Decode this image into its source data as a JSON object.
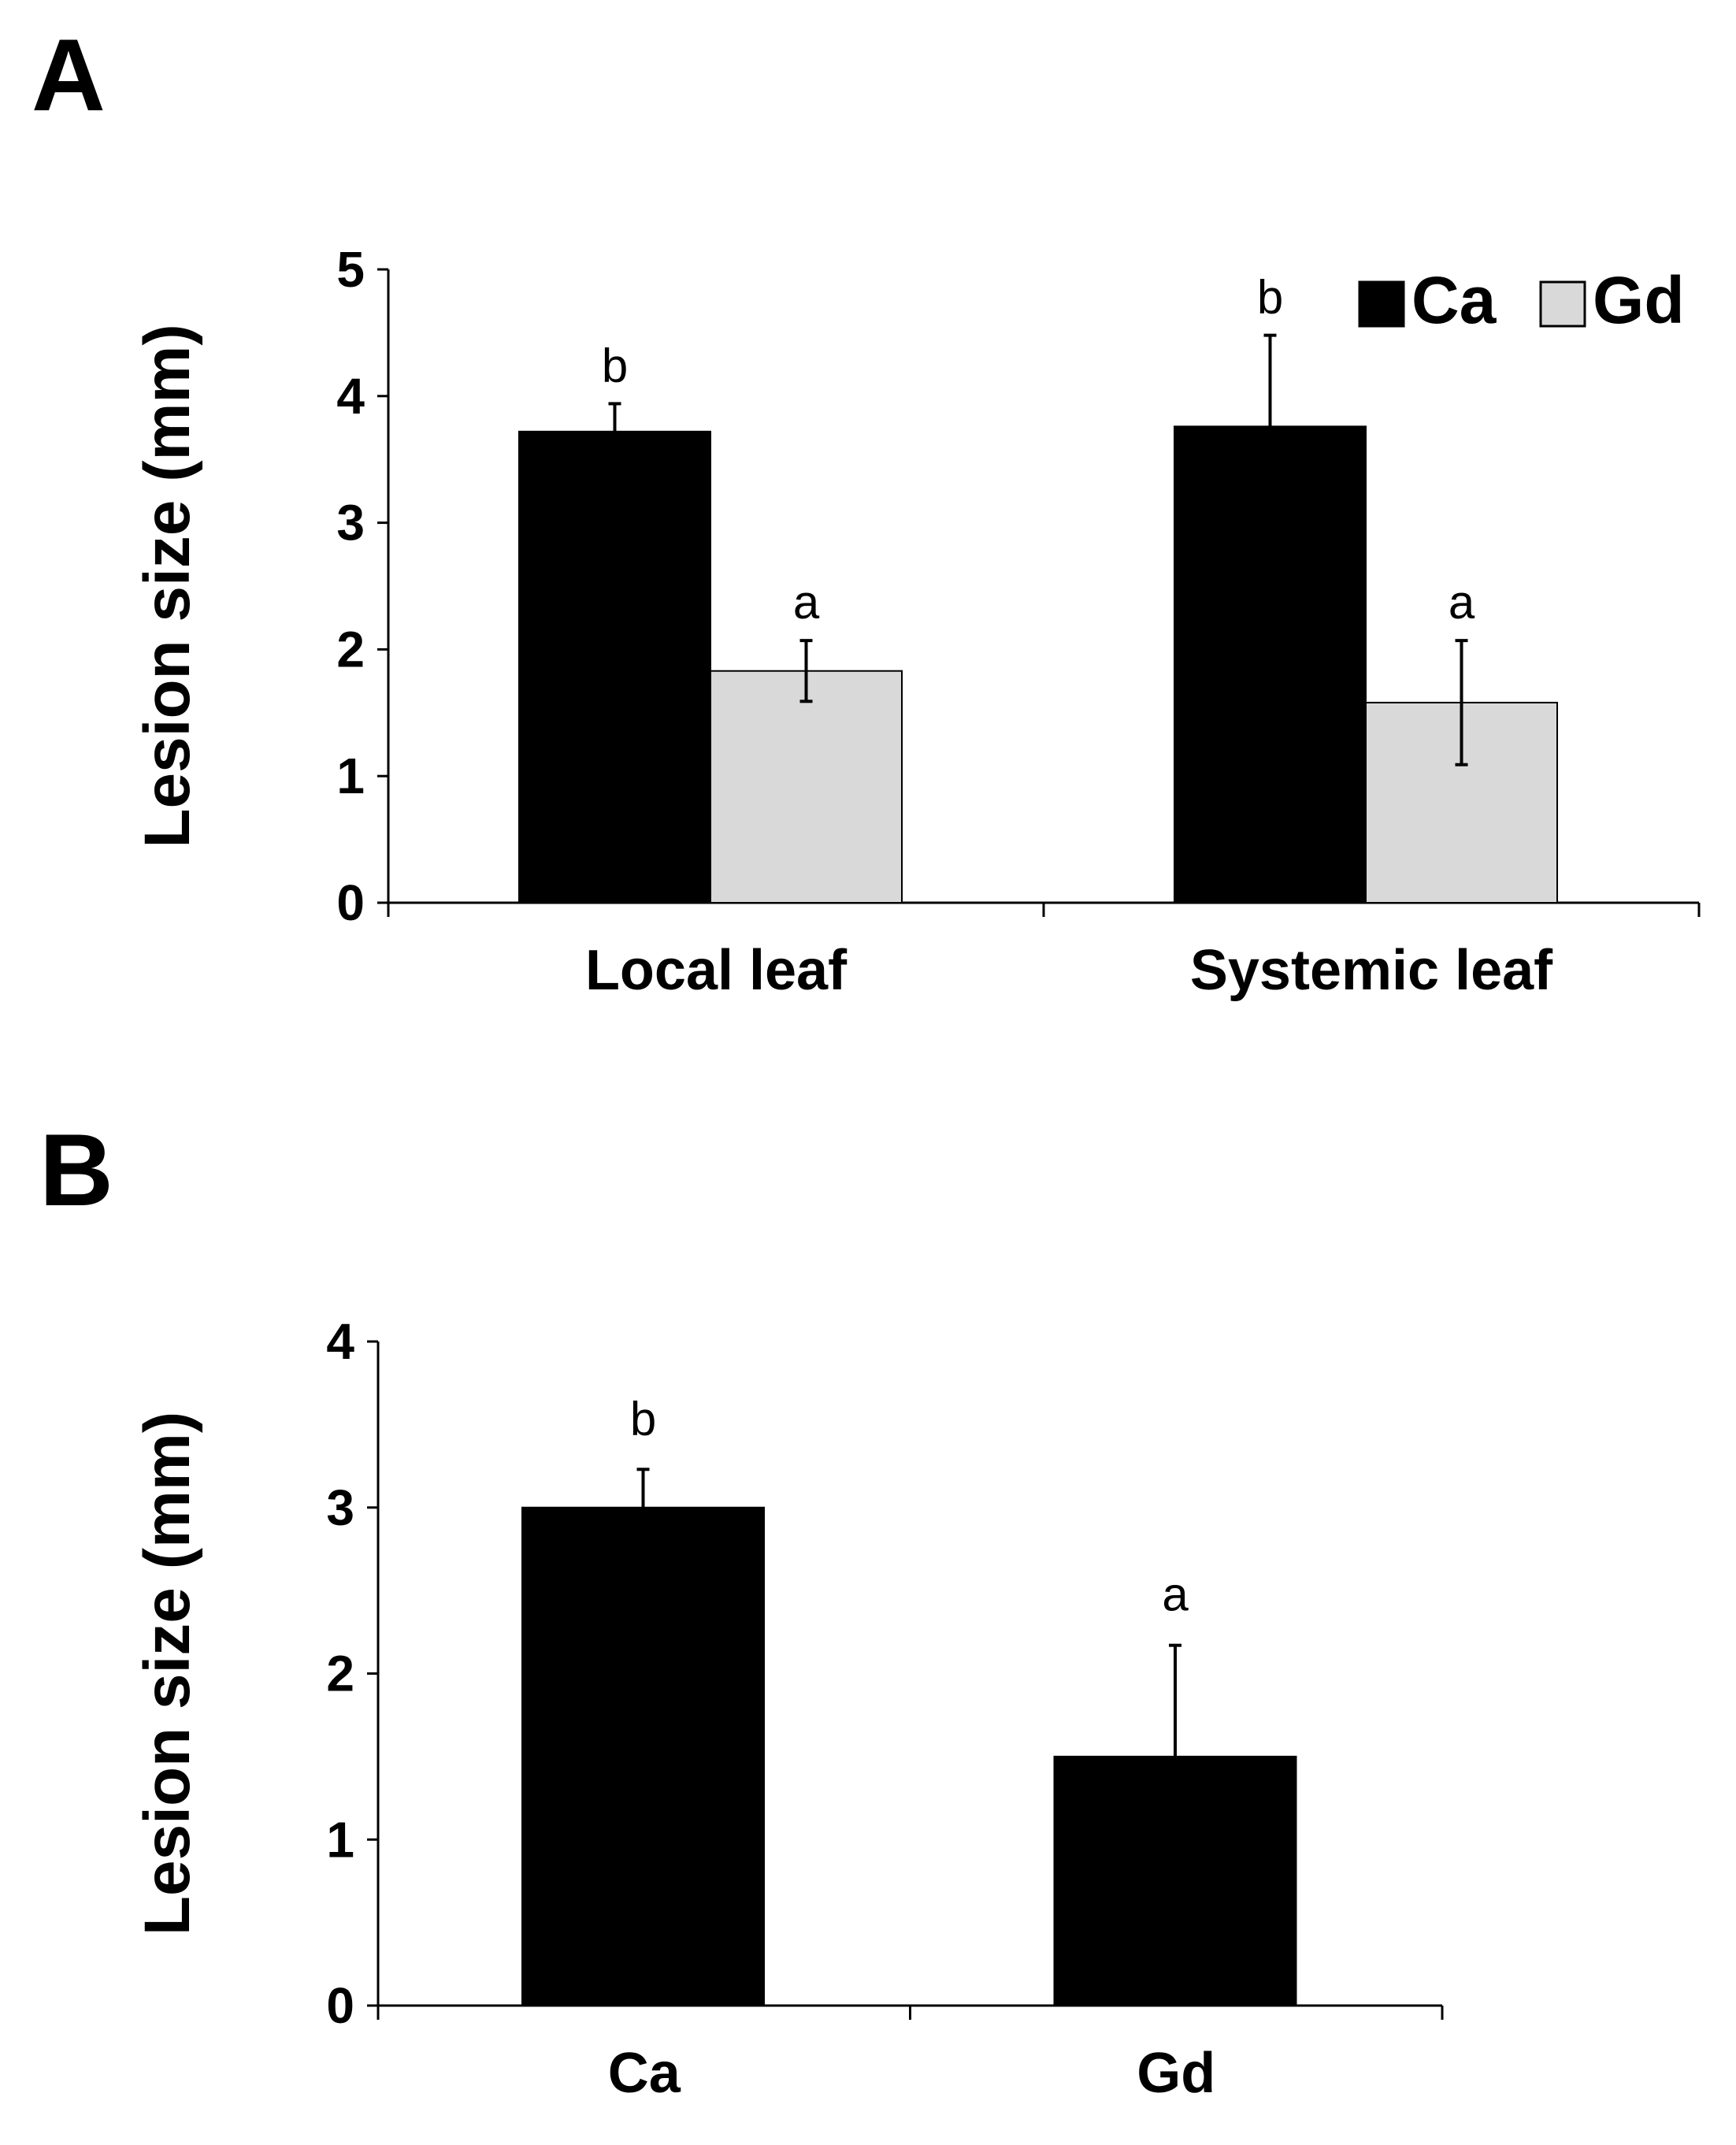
{
  "chart_data": [
    {
      "panel": "A",
      "type": "bar",
      "ylabel": "Lesion size (mm)",
      "xlabel": "",
      "ylim": [
        0,
        5
      ],
      "yticks": [
        0,
        1,
        2,
        3,
        4,
        5
      ],
      "categories": [
        "Local leaf",
        "Systemic leaf"
      ],
      "legend": "top-right",
      "series": [
        {
          "name": "Ca",
          "color": "#000000",
          "values": [
            3.72,
            3.76
          ],
          "errors": [
            0.22,
            0.72
          ],
          "labels": [
            "b",
            "b"
          ]
        },
        {
          "name": "Gd",
          "color": "#d9d9d9",
          "values": [
            1.83,
            1.58
          ],
          "errors": [
            0.24,
            0.49
          ],
          "labels": [
            "a",
            "a"
          ]
        }
      ]
    },
    {
      "panel": "B",
      "type": "bar",
      "ylabel": "Lesion size (mm)",
      "xlabel": "",
      "ylim": [
        0,
        4
      ],
      "yticks": [
        0,
        1,
        2,
        3,
        4
      ],
      "categories": [
        "Ca",
        "Gd"
      ],
      "series": [
        {
          "name": "",
          "color": "#000000",
          "values": [
            3.0,
            1.5
          ],
          "errors": [
            0.23,
            0.67
          ],
          "labels": [
            "b",
            "a"
          ]
        }
      ]
    }
  ]
}
